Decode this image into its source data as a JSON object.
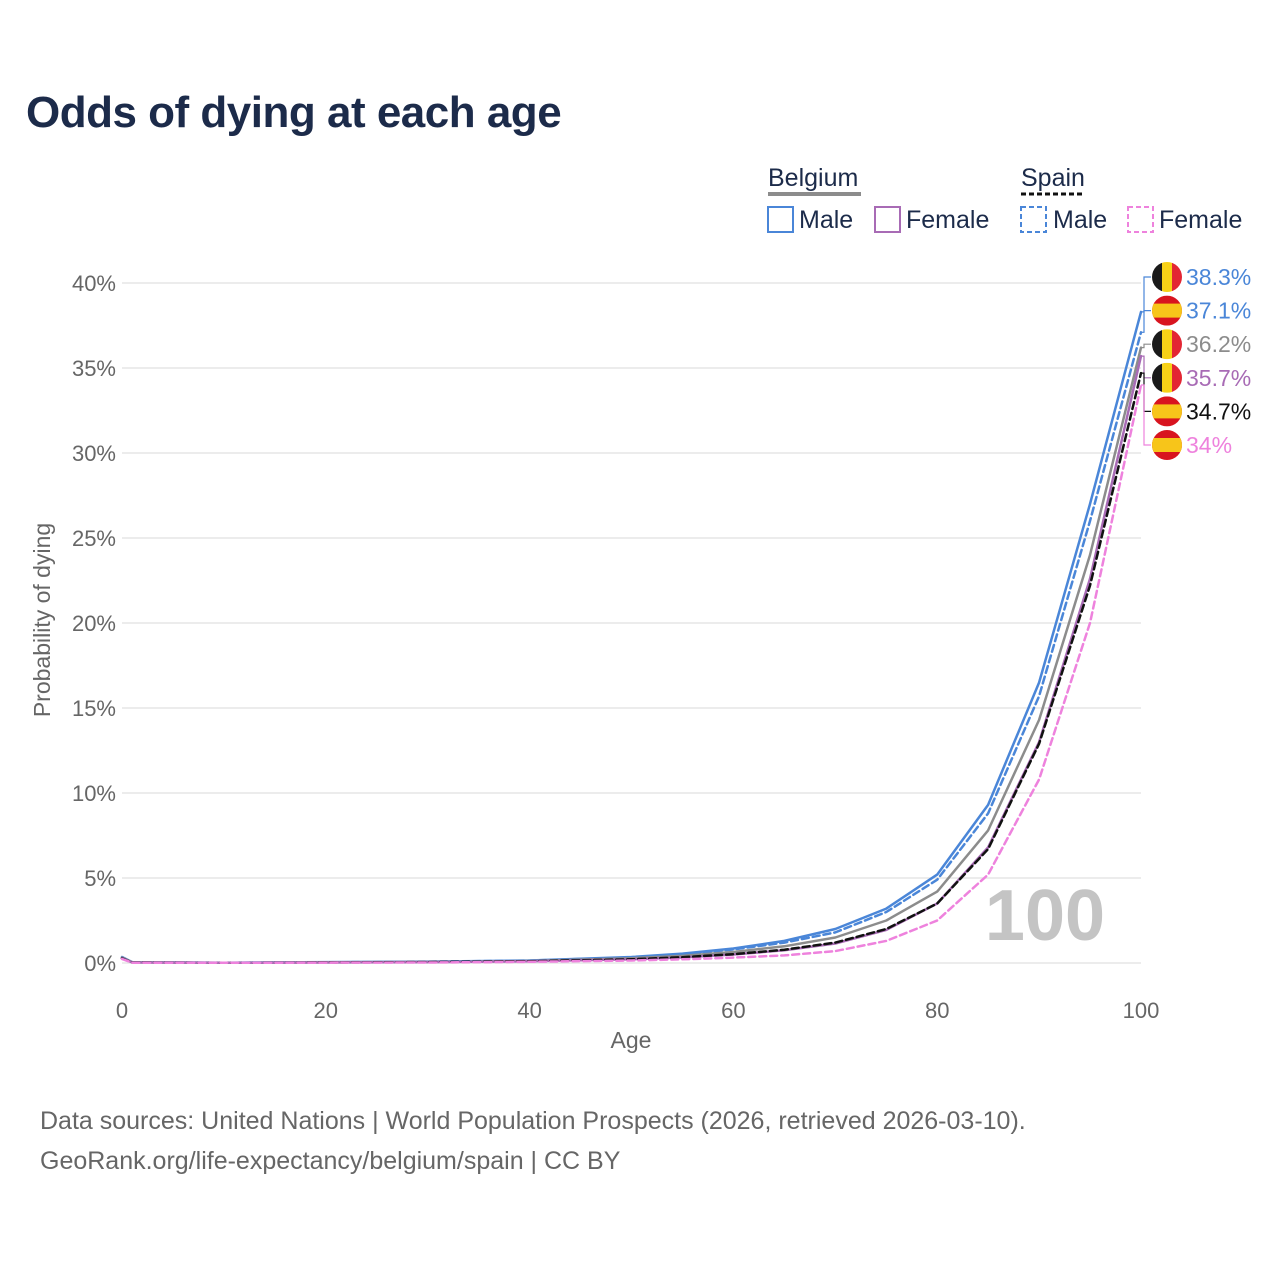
{
  "title": "Odds of dying at each age",
  "legend": {
    "groups": [
      {
        "country": "Belgium",
        "items": [
          "Male",
          "Female"
        ]
      },
      {
        "country": "Spain",
        "items": [
          "Male",
          "Female"
        ]
      }
    ]
  },
  "year_watermark": "100",
  "end_labels": [
    {
      "text": "38.3%",
      "flag": "belgium-flag",
      "color": "#4a86d8"
    },
    {
      "text": "37.1%",
      "flag": "spain-flag",
      "color": "#4a86d8"
    },
    {
      "text": "36.2%",
      "flag": "belgium-flag",
      "color": "#8c8c8c"
    },
    {
      "text": "35.7%",
      "flag": "belgium-flag",
      "color": "#a86bb5"
    },
    {
      "text": "34.7%",
      "flag": "spain-flag",
      "color": "#111111"
    },
    {
      "text": "34%",
      "flag": "spain-flag",
      "color": "#ee82dd"
    }
  ],
  "footer": {
    "line1": "Data sources: United Nations | World Population Prospects (2026, retrieved 2026-03-10).",
    "line2": "GeoRank.org/life-expectancy/belgium/spain | CC BY"
  },
  "colors": {
    "male": "#4a86d8",
    "female": "#a86bb5",
    "total_belgium": "#8c8c8c",
    "total_spain": "#111111",
    "spain_female": "#ee82dd",
    "grid": "#e6e6e6"
  },
  "chart_data": {
    "type": "line",
    "title": "Odds of dying at each age",
    "xlabel": "Age",
    "ylabel": "Probability of dying",
    "xlim": [
      0,
      100
    ],
    "ylim": [
      0,
      40
    ],
    "xticks": [
      "0",
      "20",
      "40",
      "60",
      "80",
      "100"
    ],
    "yticks": [
      "0%",
      "5%",
      "10%",
      "15%",
      "20%",
      "25%",
      "30%",
      "35%",
      "40%"
    ],
    "series": [
      {
        "name": "Belgium Male",
        "style": "solid",
        "color": "#4a86d8",
        "x": [
          0,
          1,
          10,
          20,
          30,
          40,
          50,
          55,
          60,
          65,
          70,
          75,
          80,
          85,
          90,
          95,
          100
        ],
        "y": [
          0.35,
          0.05,
          0.02,
          0.05,
          0.08,
          0.15,
          0.35,
          0.55,
          0.85,
          1.3,
          2.0,
          3.2,
          5.2,
          9.3,
          16.5,
          27.0,
          38.3
        ]
      },
      {
        "name": "Spain Male",
        "style": "dashed",
        "color": "#4a86d8",
        "x": [
          0,
          1,
          10,
          20,
          30,
          40,
          50,
          55,
          60,
          65,
          70,
          75,
          80,
          85,
          90,
          95,
          100
        ],
        "y": [
          0.3,
          0.04,
          0.01,
          0.04,
          0.07,
          0.14,
          0.33,
          0.5,
          0.8,
          1.2,
          1.8,
          3.0,
          4.9,
          8.8,
          15.7,
          26.0,
          37.1
        ]
      },
      {
        "name": "Belgium Total",
        "style": "solid",
        "color": "#8c8c8c",
        "x": [
          0,
          1,
          10,
          20,
          30,
          40,
          50,
          55,
          60,
          65,
          70,
          75,
          80,
          85,
          90,
          95,
          100
        ],
        "y": [
          0.32,
          0.04,
          0.01,
          0.04,
          0.06,
          0.12,
          0.28,
          0.42,
          0.65,
          0.98,
          1.5,
          2.5,
          4.2,
          7.8,
          14.3,
          24.0,
          36.2
        ]
      },
      {
        "name": "Belgium Female",
        "style": "solid",
        "color": "#a86bb5",
        "x": [
          0,
          1,
          10,
          20,
          30,
          40,
          50,
          55,
          60,
          65,
          70,
          75,
          80,
          85,
          90,
          95,
          100
        ],
        "y": [
          0.28,
          0.03,
          0.01,
          0.03,
          0.05,
          0.1,
          0.22,
          0.33,
          0.5,
          0.75,
          1.15,
          1.95,
          3.5,
          6.8,
          13.0,
          22.6,
          35.7
        ]
      },
      {
        "name": "Spain Total",
        "style": "dashed",
        "color": "#111111",
        "x": [
          0,
          1,
          10,
          20,
          30,
          40,
          50,
          55,
          60,
          65,
          70,
          75,
          80,
          85,
          90,
          95,
          100
        ],
        "y": [
          0.27,
          0.03,
          0.01,
          0.03,
          0.05,
          0.1,
          0.22,
          0.34,
          0.52,
          0.78,
          1.2,
          2.0,
          3.5,
          6.7,
          12.9,
          22.2,
          34.7
        ]
      },
      {
        "name": "Spain Female",
        "style": "dashed",
        "color": "#ee82dd",
        "x": [
          0,
          1,
          10,
          20,
          30,
          40,
          50,
          55,
          60,
          65,
          70,
          75,
          80,
          85,
          90,
          95,
          100
        ],
        "y": [
          0.24,
          0.02,
          0.01,
          0.02,
          0.03,
          0.07,
          0.15,
          0.22,
          0.32,
          0.45,
          0.7,
          1.3,
          2.5,
          5.2,
          10.8,
          20.0,
          34.0
        ]
      }
    ]
  }
}
